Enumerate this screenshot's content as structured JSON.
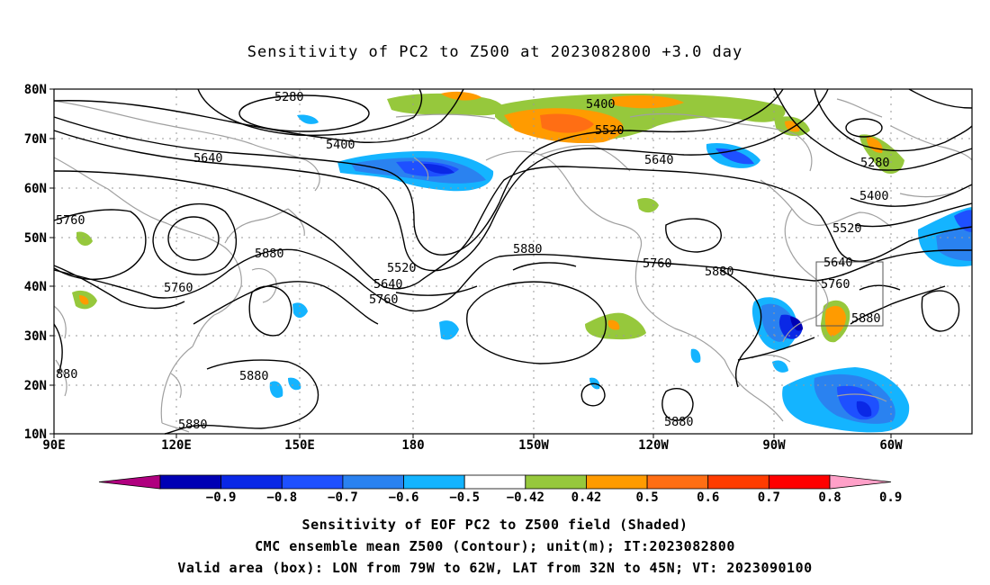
{
  "title": "Sensitivity of PC2 to Z500 at 2023082800 +3.0 day",
  "lat_labels": [
    "80N",
    "70N",
    "60N",
    "50N",
    "40N",
    "30N",
    "20N",
    "10N"
  ],
  "lon_labels": [
    "90E",
    "120E",
    "150E",
    "180",
    "150W",
    "120W",
    "90W",
    "60W"
  ],
  "contour_labels": {
    "c5280a": "5280",
    "c5400a": "5400",
    "c5640a": "5640",
    "c5760a": "5760",
    "c5880a": "5880",
    "c5760b": "5760",
    "c5520b": "5520",
    "c5640b": "5640",
    "c5760c": "5760",
    "c5880b": "5880",
    "c880a": "880",
    "c5880c": "5880",
    "c5880d": "5880",
    "c5400b": "5400",
    "c5520c": "5520",
    "c5640c": "5640",
    "c5760d": "5760",
    "c5880e": "5880",
    "c5280b": "5280",
    "c5400c": "5400",
    "c5520d": "5520",
    "c5640d": "5640",
    "c5760e": "5760",
    "c5880f": "5880",
    "c5880g": "5880"
  },
  "colorbar": {
    "labels": [
      "−0.9",
      "−0.8",
      "−0.7",
      "−0.6",
      "−0.5",
      "−0.42",
      "0.42",
      "0.5",
      "0.6",
      "0.7",
      "0.8",
      "0.9"
    ],
    "colors": [
      "#b0007f",
      "#0000b4",
      "#0a28e6",
      "#1e50ff",
      "#2a82f0",
      "#14b4ff",
      "#ffffff",
      "#96c83c",
      "#ff9b00",
      "#ff6e14",
      "#ff3c00",
      "#ff0000",
      "#ffa0c8"
    ]
  },
  "captions": [
    "Sensitivity of EOF PC2 to Z500 field (Shaded)",
    "CMC ensemble mean Z500 (Contour); unit(m); IT:2023082800",
    "Valid area (box): LON from 79W to 62W, LAT from 32N to 45N; VT: 2023090100"
  ],
  "colors": {
    "contour": "#000000",
    "coast": "#a0a0a0",
    "grid": "#999999"
  }
}
